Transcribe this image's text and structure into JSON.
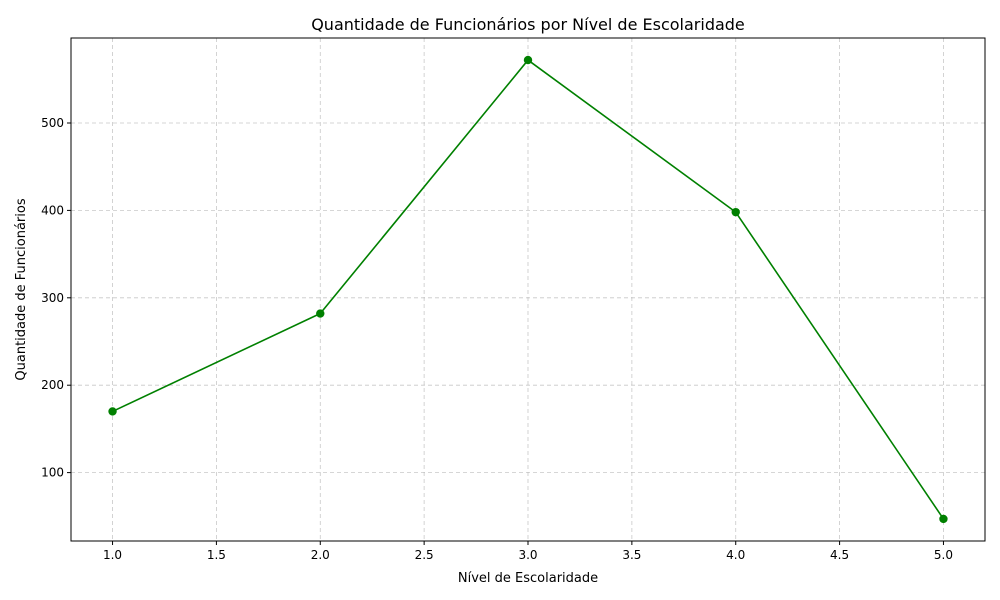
{
  "chart_data": {
    "type": "line",
    "title": "Quantidade de Funcionários por Nível de Escolaridade",
    "xlabel": "Nível de Escolaridade",
    "ylabel": "Quantidade de Funcionários",
    "x": [
      1,
      2,
      3,
      4,
      5
    ],
    "series": [
      {
        "values": [
          170,
          282,
          572,
          398,
          47
        ],
        "color": "#008000",
        "marker": "circle"
      }
    ],
    "xlim": [
      0.8,
      5.2
    ],
    "ylim": [
      21.75,
      597.25
    ],
    "xticks": [
      1.0,
      1.5,
      2.0,
      2.5,
      3.0,
      3.5,
      4.0,
      4.5,
      5.0
    ],
    "xtick_labels": [
      "1.0",
      "1.5",
      "2.0",
      "2.5",
      "3.0",
      "3.5",
      "4.0",
      "4.5",
      "5.0"
    ],
    "yticks": [
      100,
      200,
      300,
      400,
      500
    ],
    "ytick_labels": [
      "100",
      "200",
      "300",
      "400",
      "500"
    ],
    "grid": true,
    "grid_color": "#b0b0b0",
    "legend": "none"
  }
}
